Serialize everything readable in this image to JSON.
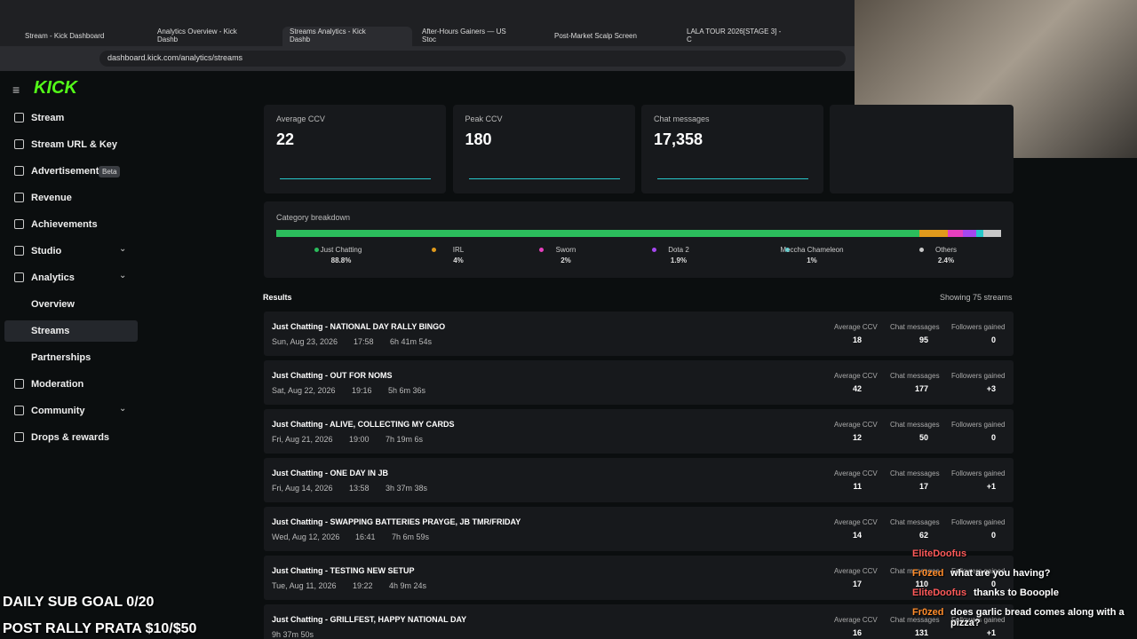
{
  "browser": {
    "tabs": [
      "Stream - Kick Dashboard",
      "Analytics Overview - Kick Dashb",
      "Streams Analytics - Kick Dashb",
      "After-Hours Gainers — US Stoc",
      "Post-Market Scalp Screen",
      "LALA TOUR 2026[STAGE 3] - C"
    ],
    "url": "dashboard.kick.com/analytics/streams"
  },
  "sidebar": {
    "logo": "KICK",
    "items": [
      "Stream",
      "Stream URL & Key",
      "Advertisement",
      "Revenue",
      "Achievements",
      "Studio",
      "Analytics",
      "Overview",
      "Streams",
      "Partnerships",
      "Moderation",
      "Community",
      "Drops & rewards"
    ],
    "badge": "Beta"
  },
  "stats": [
    {
      "label": "Average CCV",
      "value": "22"
    },
    {
      "label": "Peak CCV",
      "value": "180"
    },
    {
      "label": "Chat messages",
      "value": "17,358"
    }
  ],
  "category_breakdown": {
    "title": "Category breakdown",
    "items": [
      {
        "name": "Just Chatting",
        "value": 88.8,
        "value_label": "88.8%",
        "color": "#2bbd5c"
      },
      {
        "name": "IRL",
        "value": 4,
        "value_label": "4%",
        "color": "#e09a1c"
      },
      {
        "name": "Sworn",
        "value": 2,
        "value_label": "2%",
        "color": "#e63fbe"
      },
      {
        "name": "Dota 2",
        "value": 1.9,
        "value_label": "1.9%",
        "color": "#a547ef"
      },
      {
        "name": "Meccha Chameleon",
        "value": 1,
        "value_label": "1%",
        "color": "#27c7c9"
      },
      {
        "name": "Others",
        "value": 2.4,
        "value_label": "2.4%",
        "color": "#c8c8c8"
      }
    ]
  },
  "results": {
    "title": "Results",
    "count": "Showing 75 streams",
    "columns": [
      "Average CCV",
      "Chat messages",
      "Followers gained"
    ],
    "rows": [
      {
        "title": "Just Chatting - NATIONAL DAY RALLY BINGO",
        "date": "Sun, Aug 23, 2026",
        "time": "17:58",
        "duration": "6h 41m 54s",
        "values": [
          "18",
          "95",
          "0"
        ]
      },
      {
        "title": "Just Chatting - OUT FOR NOMS",
        "date": "Sat, Aug 22, 2026",
        "time": "19:16",
        "duration": "5h 6m 36s",
        "values": [
          "42",
          "177",
          "+3"
        ]
      },
      {
        "title": "Just Chatting - ALIVE, COLLECTING MY CARDS",
        "date": "Fri, Aug 21, 2026",
        "time": "19:00",
        "duration": "7h 19m 6s",
        "values": [
          "12",
          "50",
          "0"
        ]
      },
      {
        "title": "Just Chatting - ONE DAY IN JB",
        "date": "Fri, Aug 14, 2026",
        "time": "13:58",
        "duration": "3h 37m 38s",
        "values": [
          "11",
          "17",
          "+1"
        ]
      },
      {
        "title": "Just Chatting - SWAPPING BATTERIES PRAYGE, JB TMR/FRIDAY",
        "date": "Wed, Aug 12, 2026",
        "time": "16:41",
        "duration": "7h 6m 59s",
        "values": [
          "14",
          "62",
          "0"
        ]
      },
      {
        "title": "Just Chatting - TESTING NEW SETUP",
        "date": "Tue, Aug 11, 2026",
        "time": "19:22",
        "duration": "4h 9m 24s",
        "values": [
          "17",
          "110",
          "0"
        ]
      },
      {
        "title": "Just Chatting - GRILLFEST, HAPPY NATIONAL DAY",
        "duration": "9h 37m 50s",
        "values": [
          "16",
          "131",
          "+1"
        ]
      }
    ]
  },
  "overlay": {
    "goals": [
      "DAILY SUB GOAL 0/20",
      "POST RALLY PRATA $10/$50"
    ],
    "chat": [
      {
        "user": "EliteDoofus",
        "color": "#ff5a5a",
        "message": ""
      },
      {
        "user": "Fr0zed",
        "color": "#ff8c2a",
        "message": "what are you having?"
      },
      {
        "user": "EliteDoofus",
        "color": "#ff5a5a",
        "message": "thanks to Booople"
      },
      {
        "user": "Fr0zed",
        "color": "#ff8c2a",
        "message": "does garlic bread comes along with a pizza?"
      }
    ]
  }
}
